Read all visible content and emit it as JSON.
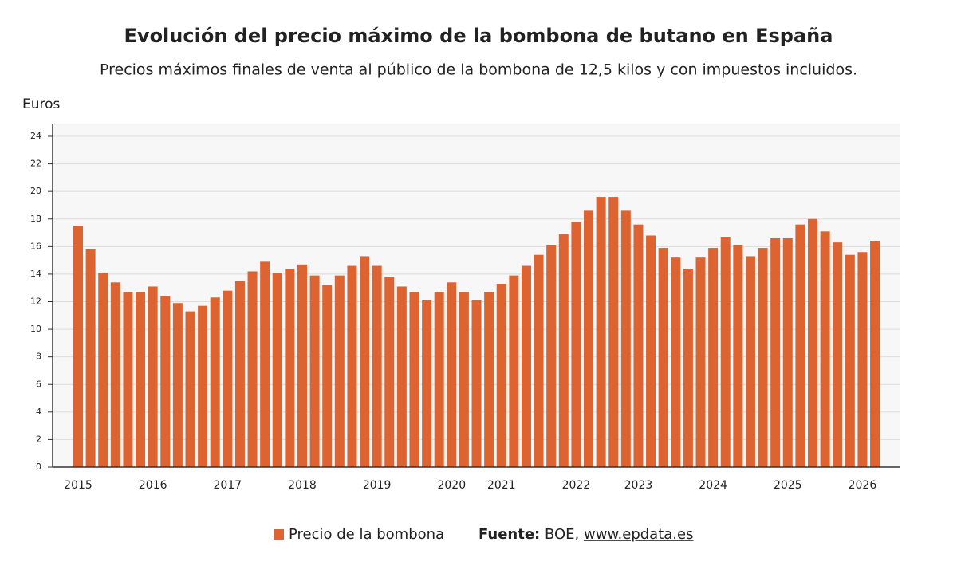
{
  "chart_data": {
    "type": "bar",
    "title": "Evolución del precio máximo de la bombona de butano en España",
    "subtitle": "Precios máximos finales de venta al público de la bombona de 12,5 kilos y con impuestos incluidos.",
    "y_label": "Euros",
    "categories": [
      "2015",
      null,
      null,
      null,
      null,
      null,
      "2016",
      null,
      null,
      null,
      null,
      null,
      "2017",
      null,
      null,
      null,
      null,
      null,
      "2018",
      null,
      null,
      null,
      null,
      null,
      "2019",
      null,
      null,
      null,
      null,
      null,
      "2020",
      null,
      null,
      null,
      "2021",
      null,
      null,
      null,
      null,
      null,
      "2022",
      null,
      null,
      null,
      null,
      "2023",
      null,
      null,
      null,
      null,
      null,
      "2024",
      null,
      null,
      null,
      null,
      null,
      "2025",
      null,
      null,
      null,
      null,
      null,
      "2026",
      null
    ],
    "series": [
      {
        "name": "Precio de la bombona",
        "color": "#dd6331",
        "values": [
          17.5,
          15.8,
          14.1,
          13.4,
          12.7,
          12.7,
          13.1,
          12.4,
          11.9,
          11.3,
          11.7,
          12.3,
          12.8,
          13.5,
          14.2,
          14.9,
          14.1,
          14.4,
          14.7,
          13.9,
          13.2,
          13.9,
          14.6,
          15.3,
          14.6,
          13.8,
          13.1,
          12.7,
          12.1,
          12.7,
          13.4,
          12.7,
          12.1,
          12.7,
          13.3,
          13.9,
          14.6,
          15.4,
          16.1,
          16.9,
          17.8,
          18.6,
          19.6,
          19.6,
          18.6,
          17.6,
          16.8,
          15.9,
          15.2,
          14.4,
          15.2,
          15.9,
          16.7,
          16.1,
          15.3,
          15.9,
          16.6,
          16.6,
          17.6,
          18.0,
          17.1,
          16.3,
          15.4,
          15.6,
          16.4
        ]
      }
    ],
    "ylim": [
      0,
      24
    ],
    "yticks": [
      0,
      2,
      4,
      6,
      8,
      10,
      12,
      14,
      16,
      18,
      20,
      22,
      24
    ],
    "grid": true,
    "source": {
      "label": "Fuente:",
      "text": "BOE,",
      "link": "www.epdata.es"
    }
  }
}
